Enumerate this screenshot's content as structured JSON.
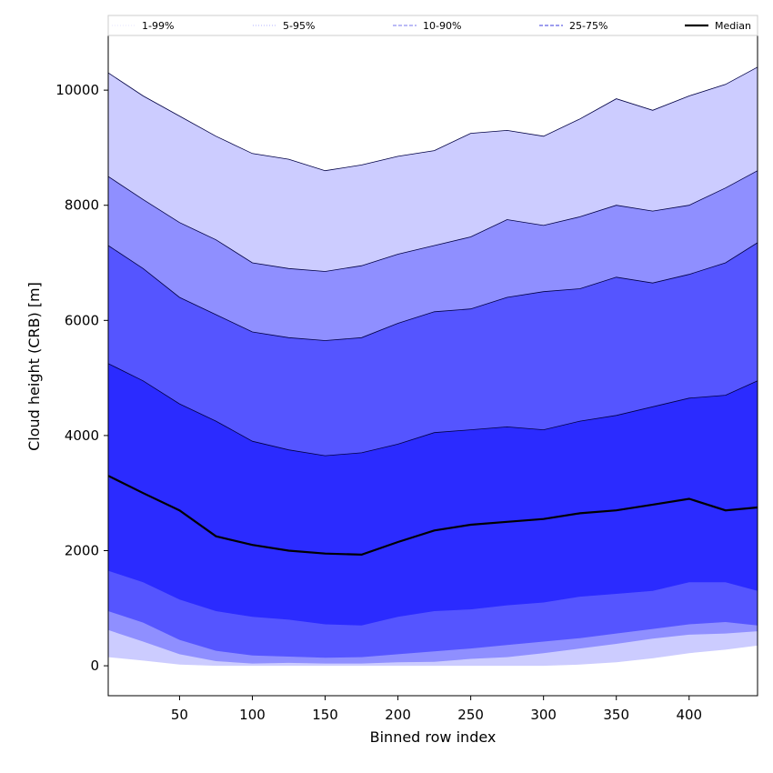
{
  "chart_data": {
    "type": "area",
    "xlabel": "Binned row index",
    "ylabel": "Cloud height (CRB) [m]",
    "xlim": [
      1,
      447
    ],
    "ylim": [
      -520,
      10950
    ],
    "xticks": [
      50,
      100,
      150,
      200,
      250,
      300,
      350,
      400
    ],
    "yticks": [
      0,
      2000,
      4000,
      6000,
      8000,
      10000
    ],
    "grid": false,
    "legend_position": "top",
    "legend": [
      {
        "label": "1-99%",
        "style": "dotted-thin",
        "color": "#ccccff"
      },
      {
        "label": "5-95%",
        "style": "dotted",
        "color": "#9a9aff"
      },
      {
        "label": "10-90%",
        "style": "dashed",
        "color": "#7777ee"
      },
      {
        "label": "25-75%",
        "style": "dashed",
        "color": "#3b3bdd"
      },
      {
        "label": "Median",
        "style": "solid",
        "color": "#000000"
      }
    ],
    "x": [
      1,
      25,
      50,
      75,
      100,
      125,
      150,
      175,
      200,
      225,
      250,
      275,
      300,
      325,
      350,
      375,
      400,
      425,
      447
    ],
    "bands": [
      {
        "name": "1-99%",
        "color": "#ccccff",
        "lower": [
          150,
          90,
          20,
          0,
          0,
          0,
          0,
          0,
          0,
          0,
          0,
          0,
          0,
          20,
          60,
          130,
          220,
          280,
          350
        ],
        "upper": [
          10300,
          9900,
          9550,
          9200,
          8900,
          8800,
          8600,
          8700,
          8850,
          8950,
          9250,
          9300,
          9200,
          9500,
          9850,
          9650,
          9900,
          10100,
          10400
        ]
      },
      {
        "name": "5-95%",
        "color": "#8f8fff",
        "lower": [
          620,
          420,
          200,
          80,
          40,
          50,
          40,
          40,
          60,
          70,
          120,
          150,
          220,
          300,
          380,
          470,
          540,
          560,
          600
        ],
        "upper": [
          8500,
          8100,
          7700,
          7400,
          7000,
          6900,
          6850,
          6950,
          7150,
          7300,
          7450,
          7750,
          7650,
          7800,
          8000,
          7900,
          8000,
          8300,
          8600
        ]
      },
      {
        "name": "10-90%",
        "color": "#5555ff",
        "lower": [
          950,
          750,
          450,
          260,
          180,
          160,
          140,
          150,
          200,
          250,
          300,
          360,
          420,
          480,
          560,
          640,
          720,
          760,
          700
        ]
      },
      {
        "name": "10-90% upper",
        "color": "#5555ff",
        "upper": [
          7300,
          6900,
          6400,
          6100,
          5800,
          5700,
          5650,
          5700,
          5950,
          6150,
          6200,
          6400,
          6500,
          6550,
          6750,
          6650,
          6800,
          7000,
          7350
        ]
      },
      {
        "name": "25-75%",
        "color": "#2b2bff",
        "lower": [
          1650,
          1450,
          1150,
          950,
          850,
          800,
          720,
          700,
          850,
          950,
          980,
          1050,
          1100,
          1200,
          1250,
          1300,
          1450,
          1450,
          1300
        ],
        "upper": [
          5250,
          4950,
          4550,
          4250,
          3900,
          3750,
          3650,
          3700,
          3850,
          4050,
          4100,
          4150,
          4100,
          4250,
          4350,
          4500,
          4650,
          4700,
          4950
        ]
      }
    ],
    "median": [
      3300,
      3000,
      2700,
      2250,
      2100,
      2000,
      1950,
      1930,
      2150,
      2350,
      2450,
      2500,
      2550,
      2650,
      2700,
      2800,
      2900,
      2700,
      2750
    ]
  }
}
